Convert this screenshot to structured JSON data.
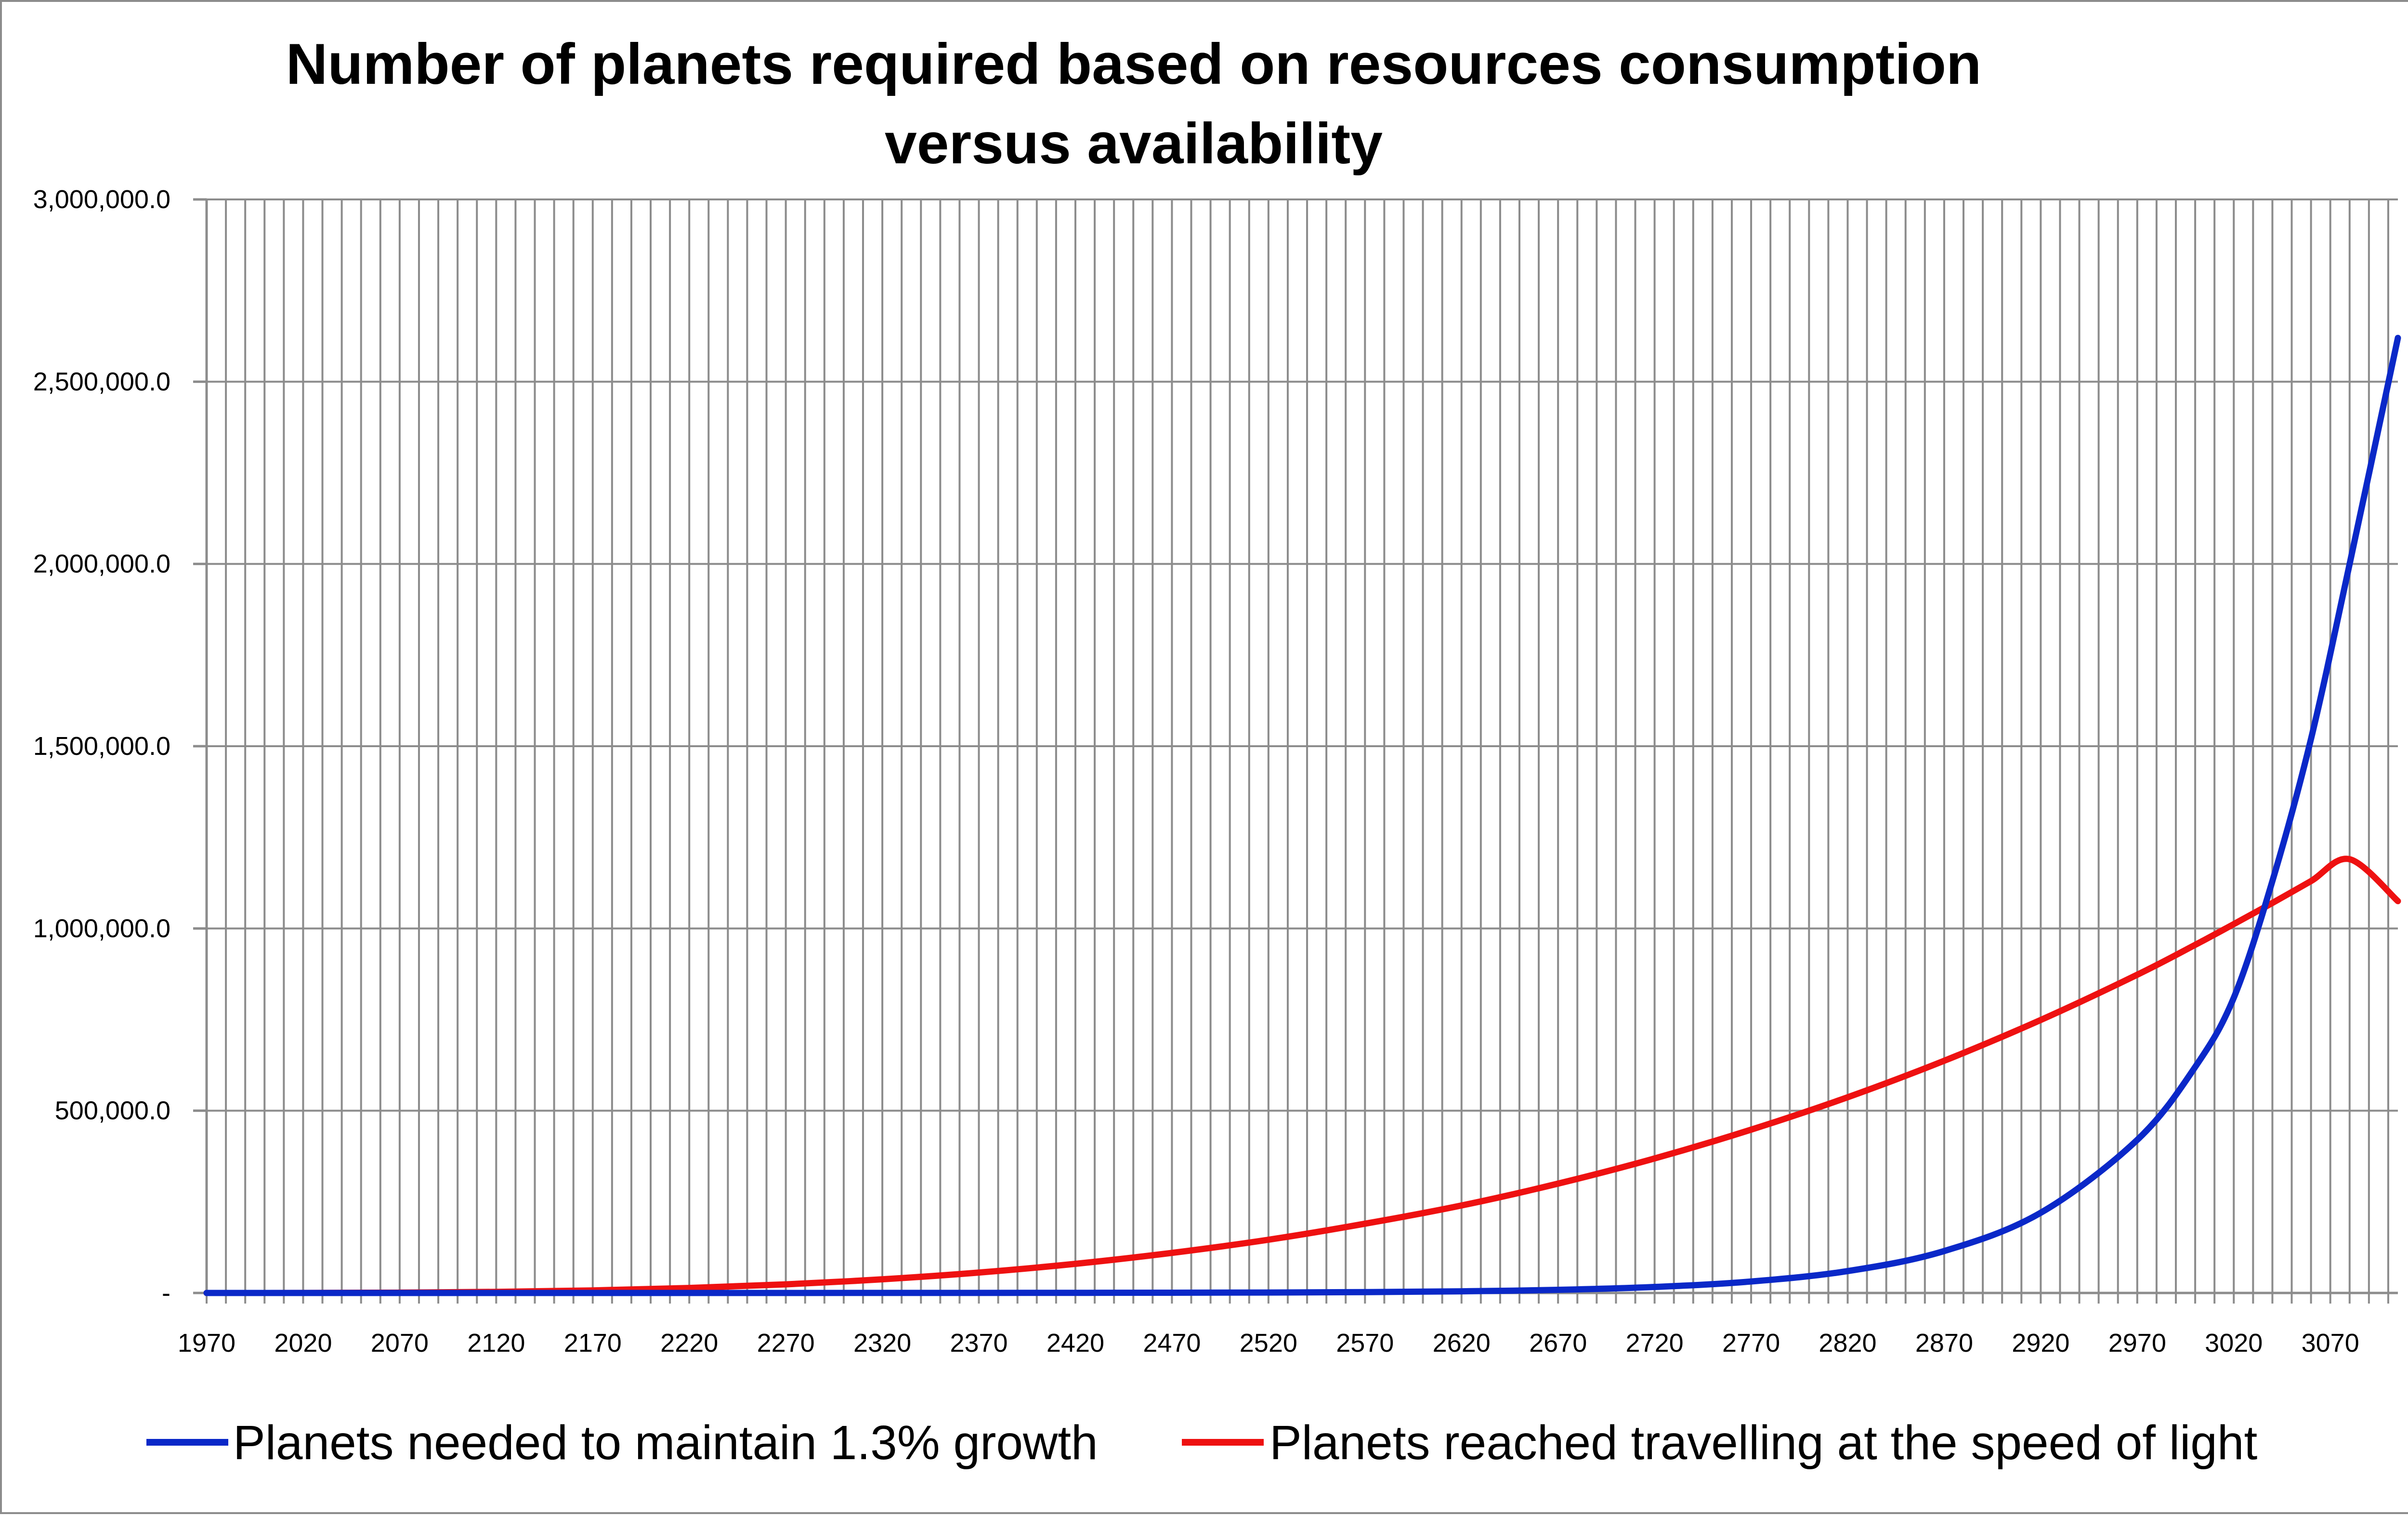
{
  "chart_data": {
    "type": "line",
    "title": [
      "Number of planets required based on resources consumption",
      "versus availability"
    ],
    "xlabel": "",
    "ylabel": "",
    "xlim": [
      1970,
      3105
    ],
    "ylim": [
      0,
      3000000
    ],
    "x_tick_labels": [
      "1970",
      "2020",
      "2070",
      "2120",
      "2170",
      "2220",
      "2270",
      "2320",
      "2370",
      "2420",
      "2470",
      "2520",
      "2570",
      "2620",
      "2670",
      "2720",
      "2770",
      "2820",
      "2870",
      "2920",
      "2970",
      "3020",
      "3070"
    ],
    "y_tick_labels": [
      "-",
      "500,000.0",
      "1,000,000.0",
      "1,500,000.0",
      "2,000,000.0",
      "2,500,000.0",
      "3,000,000.0"
    ],
    "y_tick_values": [
      0,
      500000,
      1000000,
      1500000,
      2000000,
      2500000,
      3000000
    ],
    "grid": true,
    "legend_position": "bottom",
    "x": [
      1970,
      2020,
      2070,
      2120,
      2170,
      2220,
      2270,
      2320,
      2370,
      2420,
      2470,
      2520,
      2570,
      2620,
      2670,
      2720,
      2770,
      2820,
      2870,
      2920,
      2970,
      3000,
      3020,
      3040,
      3060,
      3080,
      3105
    ],
    "series": [
      {
        "name": "Planets needed to maintain 1.3% growth",
        "color": "#0a28c8",
        "values": [
          1,
          2,
          4,
          7,
          13,
          25,
          48,
          92,
          176,
          337,
          643,
          1230,
          2350,
          4500,
          8600,
          16500,
          31500,
          60000,
          115000,
          220000,
          420000,
          620000,
          810000,
          1130000,
          1520000,
          2000000,
          2620000
        ]
      },
      {
        "name": "Planets reached travelling at the speed of light",
        "color": "#ee1111",
        "values": [
          0,
          100,
          900,
          3000,
          7000,
          13700,
          23600,
          37500,
          56000,
          80000,
          110000,
          146000,
          190000,
          240000,
          300000,
          369000,
          448000,
          537000,
          637000,
          749000,
          873000,
          955000,
          1012000,
          1070000,
          1130000,
          1190000,
          1075000
        ]
      }
    ]
  }
}
